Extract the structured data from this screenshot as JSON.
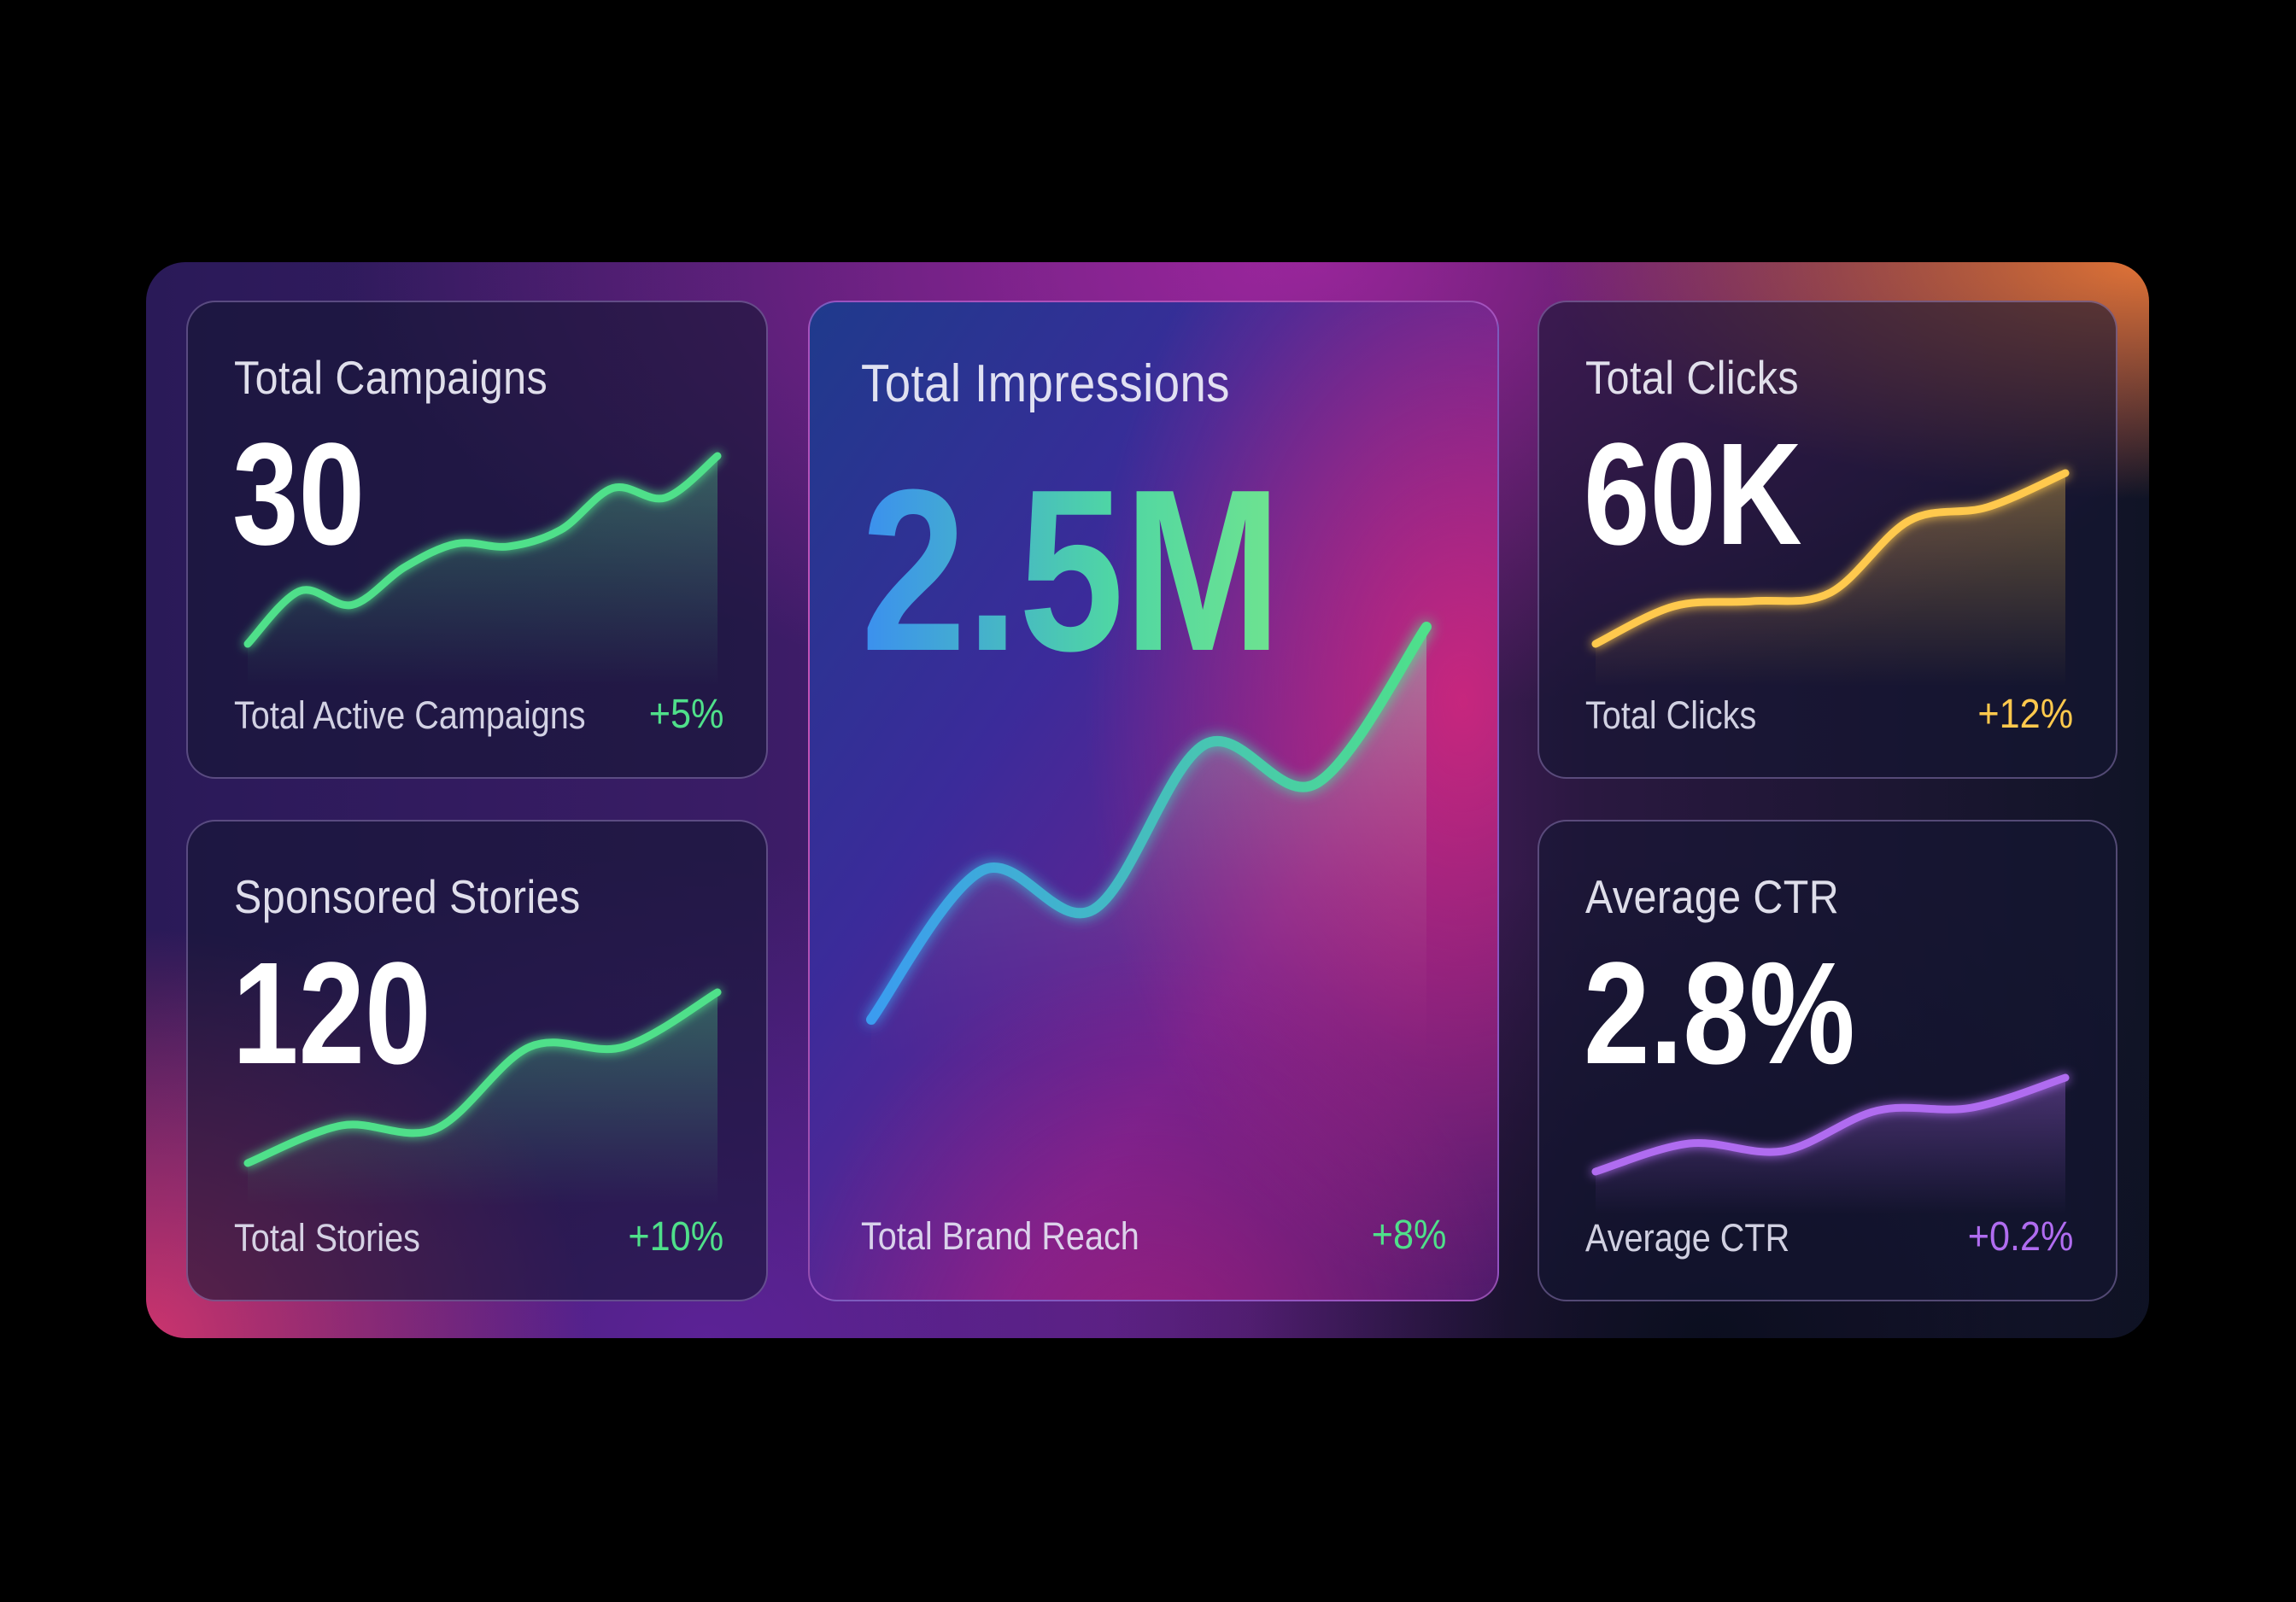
{
  "cards": [
    {
      "title": "Total Campaigns",
      "value": "30",
      "foot": "Total Active Campaigns",
      "delta": "+5%",
      "color": "#4fe08a",
      "series": [
        0,
        0.38,
        0.28,
        0.55,
        0.72,
        0.7,
        0.82,
        1.12,
        1.05,
        1.35
      ]
    },
    {
      "title": "Total Impressions",
      "value": "2.5M",
      "foot": "Total Brand Reach",
      "delta": "+8%",
      "color": "#4fe08a",
      "series": [
        0,
        0.38,
        0.28,
        0.7,
        0.6,
        1.0
      ]
    },
    {
      "title": "Total Clicks",
      "value": "60K",
      "foot": "Total Clicks",
      "delta": "+12%",
      "color": "#ffc94d",
      "series": [
        0,
        0.22,
        0.25,
        0.3,
        0.72,
        0.8,
        1.0
      ]
    },
    {
      "title": "Sponsored Stories",
      "value": "120",
      "foot": "Total Stories",
      "delta": "+10%",
      "color": "#4fe08a",
      "series": [
        0,
        0.22,
        0.2,
        0.68,
        0.68,
        1.0
      ]
    },
    {
      "title": "Average CTR",
      "value": "2.8%",
      "foot": "Average CTR",
      "delta": "+0.2%",
      "color": "#b06cf0",
      "series": [
        0,
        0.3,
        0.22,
        0.65,
        0.68,
        1.0
      ]
    }
  ]
}
